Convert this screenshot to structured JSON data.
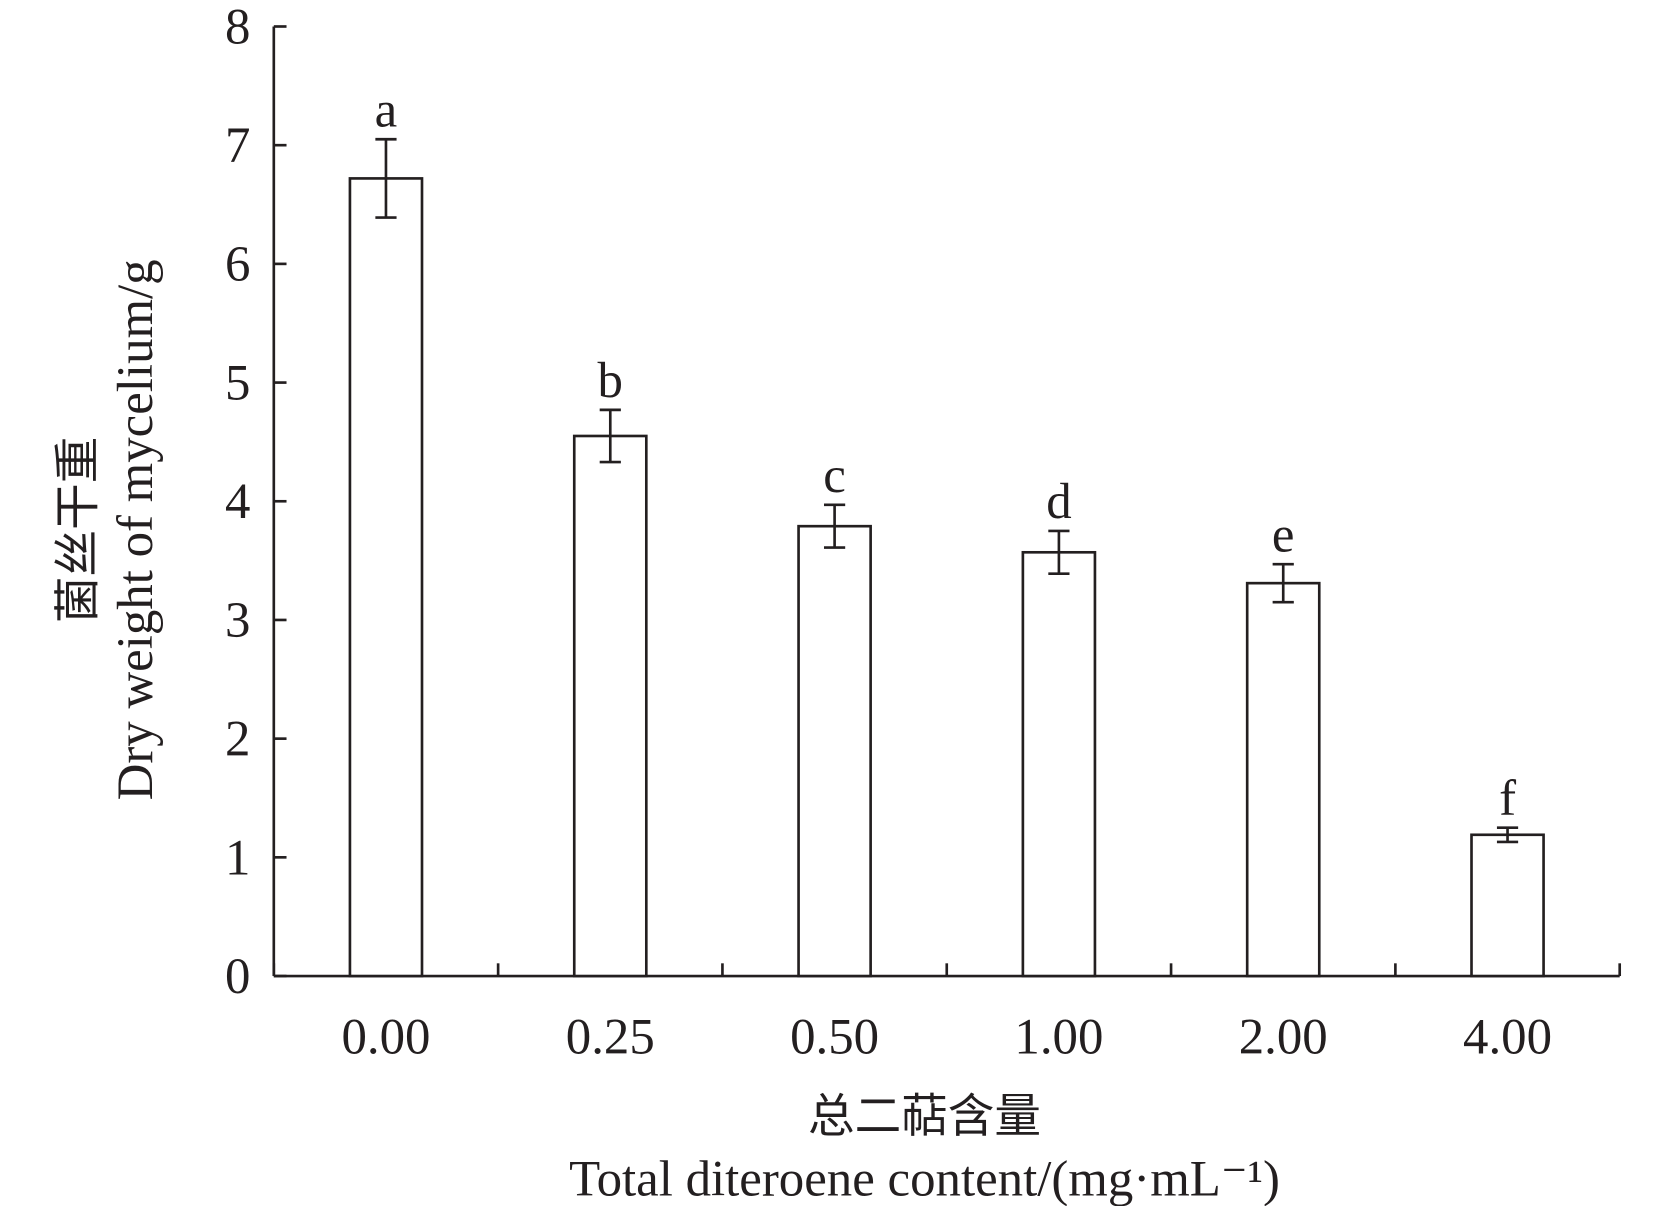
{
  "chart_data": {
    "type": "bar",
    "title": "",
    "categories": [
      "0.00",
      "0.25",
      "0.50",
      "1.00",
      "2.00",
      "4.00"
    ],
    "values": [
      6.72,
      4.55,
      3.79,
      3.57,
      3.31,
      1.19
    ],
    "errors": [
      0.33,
      0.22,
      0.18,
      0.18,
      0.16,
      0.06
    ],
    "significance_labels": [
      "a",
      "b",
      "c",
      "d",
      "e",
      "f"
    ],
    "xlabel_cn": "总二萜含量",
    "xlabel": "Total diteroene content/(mg·mL⁻¹)",
    "ylabel_cn": "菌丝干重",
    "ylabel": "Dry weight of mycelium/g",
    "ylim": [
      0,
      8
    ],
    "yticks": [
      "0",
      "1",
      "2",
      "3",
      "4",
      "5",
      "6",
      "7",
      "8"
    ],
    "grid": false,
    "colors": {
      "bar_fill": "#ffffff",
      "stroke": "#231f20"
    }
  }
}
